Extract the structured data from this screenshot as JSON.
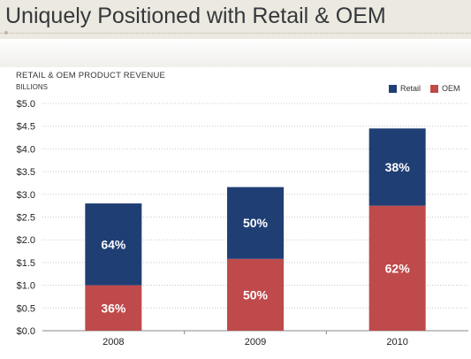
{
  "slide": {
    "title": "Uniquely Positioned with Retail & OEM"
  },
  "colors": {
    "retail": "#1f3f74",
    "oem": "#bf4a4b",
    "gridline": "#c8c8c8",
    "axis": "#888888",
    "label_text": "#ffffff"
  },
  "chart_data": {
    "type": "bar",
    "stacked": true,
    "title": "RETAIL & OEM  PRODUCT REVENUE",
    "subtitle": "BILLIONS",
    "categories": [
      "2008",
      "2009",
      "2010"
    ],
    "series": [
      {
        "name": "OEM",
        "color": "#bf4a4b",
        "values": [
          1.0,
          1.58,
          2.75
        ],
        "labels": [
          "36%",
          "50%",
          "62%"
        ]
      },
      {
        "name": "Retail",
        "color": "#1f3f74",
        "values": [
          1.8,
          1.58,
          1.7
        ],
        "labels": [
          "64%",
          "50%",
          "38%"
        ]
      }
    ],
    "legend": [
      {
        "name": "Retail",
        "color": "#1f3f74"
      },
      {
        "name": "OEM",
        "color": "#bf4a4b"
      }
    ],
    "legend_position": "top-right",
    "ylim": [
      0,
      5
    ],
    "yticks": [
      "$0.0",
      "$0.5",
      "$1.0",
      "$1.5",
      "$2.0",
      "$2.5",
      "$3.0",
      "$3.5",
      "$4.0",
      "$4.5",
      "$5.0"
    ],
    "grid": true
  }
}
